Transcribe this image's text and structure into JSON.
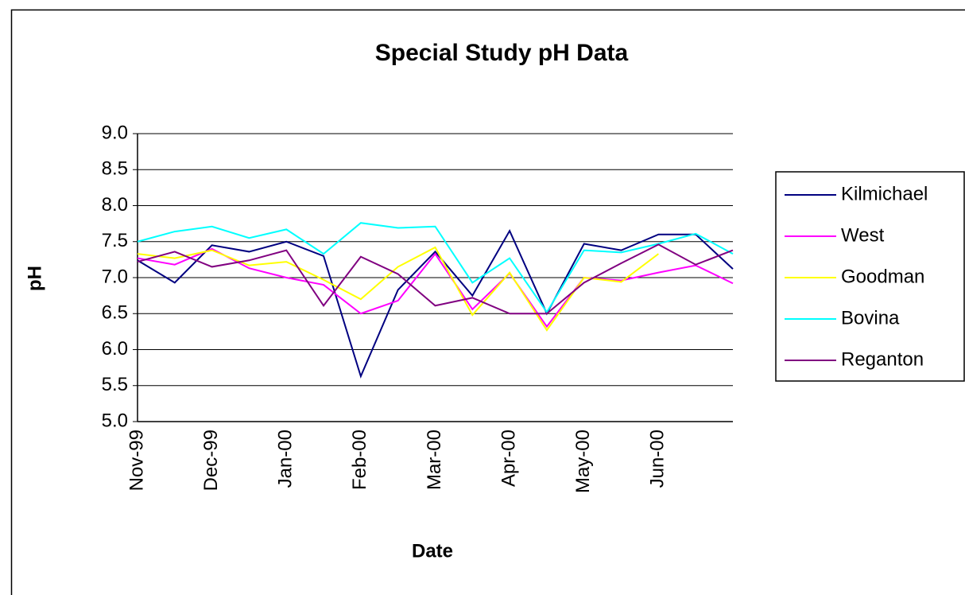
{
  "chart_data": {
    "type": "line",
    "title": "Special Study pH Data",
    "x_label": "Date",
    "y_label": "pH",
    "categories": [
      "Nov-99",
      null,
      "Dec-99",
      null,
      "Jan-00",
      null,
      "Feb-00",
      null,
      "Mar-00",
      null,
      "Apr-00",
      null,
      "May-00",
      null,
      "Jun-00",
      null,
      null
    ],
    "ylim": [
      5.0,
      9.0
    ],
    "yticks": [
      {
        "value": 5.0,
        "label": "5.0"
      },
      5.5,
      {
        "value": 6.0,
        "label": "6.0"
      },
      6.5,
      {
        "value": 7.0,
        "label": "7.0"
      },
      7.5,
      {
        "value": 8.0,
        "label": "8.0"
      },
      8.5,
      {
        "value": 9.0,
        "label": "9.0"
      }
    ],
    "grid": true,
    "legend": "right",
    "series": [
      {
        "name": "Kilmichael",
        "color": "#000080",
        "values": [
          7.24,
          6.93,
          7.45,
          7.36,
          7.5,
          7.3,
          5.63,
          6.83,
          7.36,
          6.75,
          7.65,
          6.5,
          7.47,
          7.38,
          7.6,
          7.6,
          7.12
        ]
      },
      {
        "name": "West",
        "color": "#ff00ff",
        "values": [
          7.27,
          7.18,
          7.4,
          7.13,
          7.0,
          6.9,
          6.5,
          6.68,
          7.33,
          6.56,
          7.06,
          6.32,
          7.0,
          6.96,
          7.07,
          7.17,
          6.92
        ]
      },
      {
        "name": "Goodman",
        "color": "#ffff00",
        "values": [
          7.33,
          7.27,
          7.38,
          7.17,
          7.22,
          6.97,
          6.7,
          7.15,
          7.42,
          6.48,
          7.07,
          6.27,
          7.0,
          6.94,
          7.33,
          null,
          null
        ]
      },
      {
        "name": "Bovina",
        "color": "#00ffff",
        "values": [
          7.5,
          7.64,
          7.71,
          7.55,
          7.67,
          7.33,
          7.76,
          7.69,
          7.71,
          6.93,
          7.27,
          6.52,
          7.38,
          7.35,
          7.47,
          7.61,
          7.33
        ]
      },
      {
        "name": "Reganton",
        "color": "#800080",
        "values": [
          7.22,
          7.36,
          7.15,
          7.24,
          7.38,
          6.61,
          7.29,
          7.05,
          6.61,
          6.72,
          6.5,
          6.5,
          6.93,
          7.2,
          7.46,
          7.18,
          7.38
        ]
      }
    ]
  }
}
